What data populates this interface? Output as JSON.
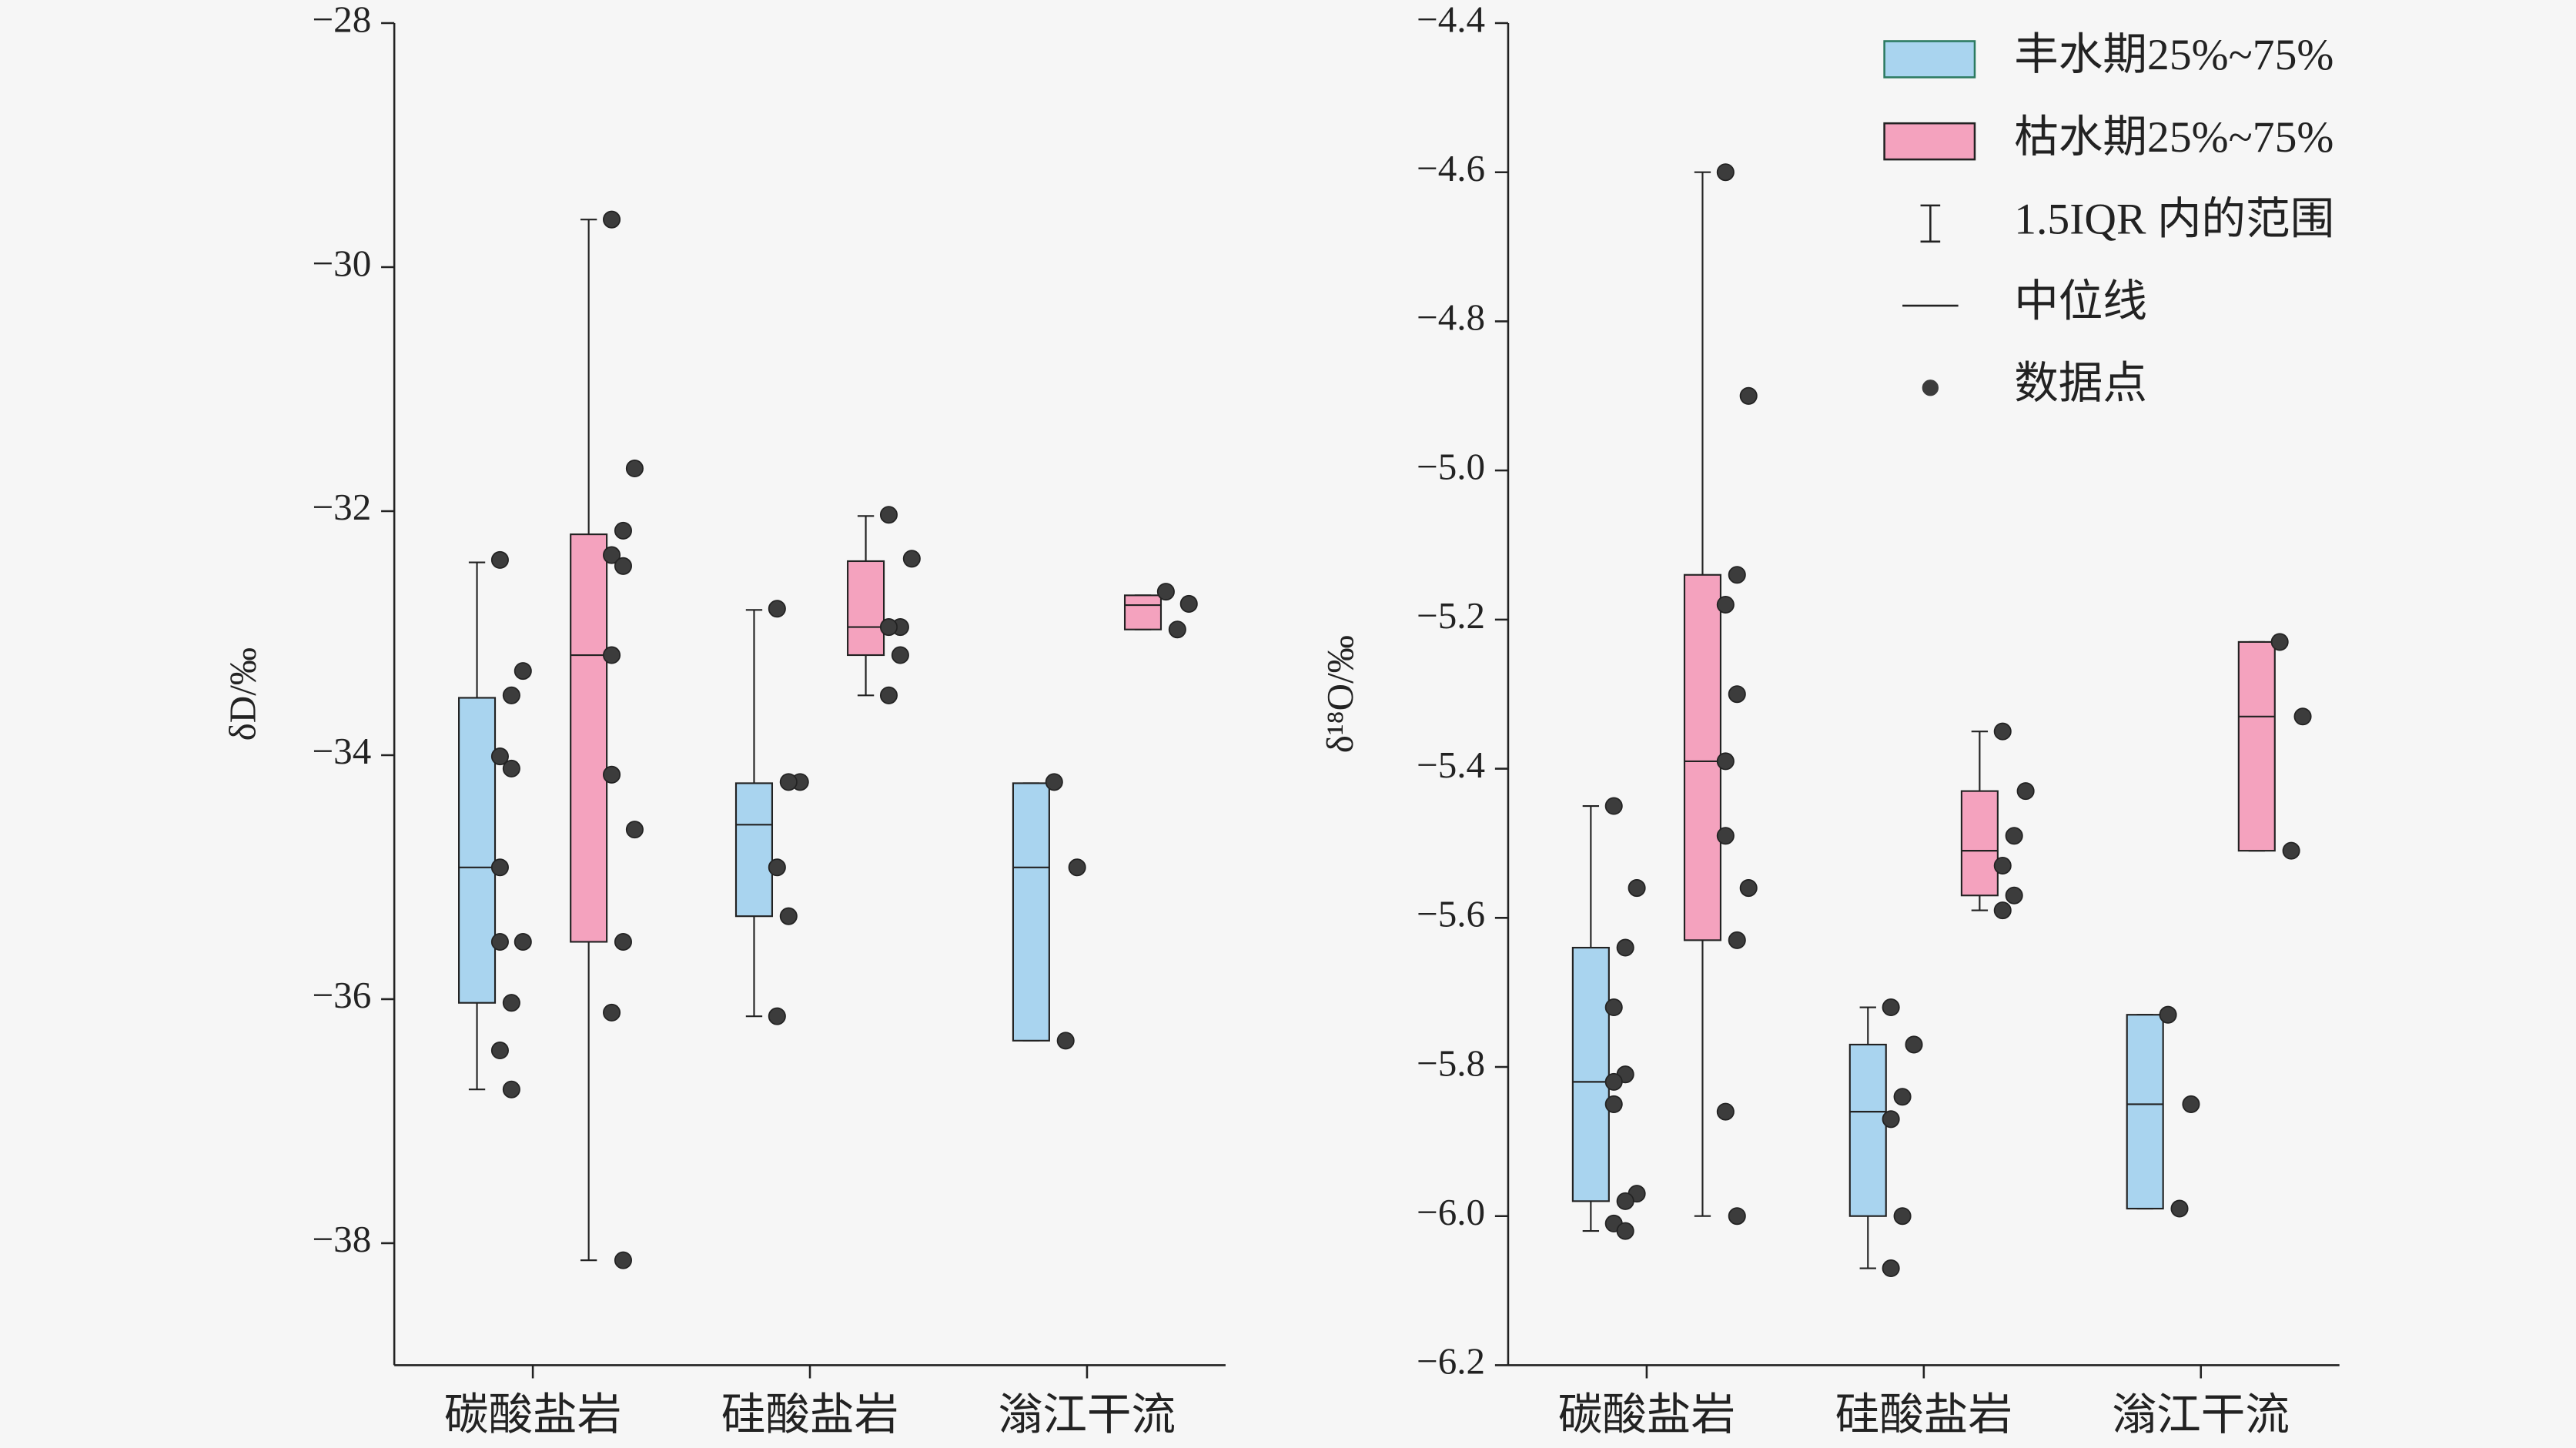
{
  "chart_data": [
    {
      "type": "box",
      "ylabel": "δD/‰",
      "categories": [
        "碳酸盐岩",
        "硅酸盐岩",
        "滃江干流"
      ],
      "ylim": [
        -39,
        -28
      ],
      "yticks": [
        {
          "value": -38,
          "label": "−38"
        },
        {
          "value": -36,
          "label": "−36"
        },
        {
          "value": -34,
          "label": "−34"
        },
        {
          "value": -32,
          "label": "−32"
        },
        {
          "value": -30,
          "label": "−30"
        },
        {
          "value": -28,
          "label": "−28"
        }
      ],
      "series": [
        {
          "color": "#a9d4ef",
          "boxes": [
            {
              "whislo": -36.74,
              "q1": -36.03,
              "med": -34.92,
              "q3": -33.53,
              "whishi": -32.42,
              "points": [
                -32.4,
                -33.31,
                -33.51,
                -34.01,
                -34.11,
                -34.92,
                -35.53,
                -35.53,
                -36.03,
                -36.42,
                -36.74
              ]
            },
            {
              "whislo": -36.14,
              "q1": -35.32,
              "med": -34.57,
              "q3": -34.23,
              "whishi": -32.81,
              "points": [
                -32.8,
                -34.22,
                -34.22,
                -34.92,
                -35.32,
                -36.14
              ]
            },
            {
              "whislo": -36.34,
              "q1": -36.34,
              "med": -34.92,
              "q3": -34.23,
              "whishi": -34.23,
              "points": [
                -34.22,
                -34.92,
                -36.34
              ]
            }
          ]
        },
        {
          "color": "#f4a2be",
          "boxes": [
            {
              "whislo": -38.14,
              "q1": -35.53,
              "med": -33.18,
              "q3": -32.19,
              "whishi": -29.61,
              "points": [
                -29.61,
                -31.65,
                -32.16,
                -32.36,
                -32.45,
                -33.18,
                -34.16,
                -34.61,
                -35.53,
                -36.11,
                -38.14
              ]
            },
            {
              "whislo": -33.51,
              "q1": -33.18,
              "med": -32.95,
              "q3": -32.41,
              "whishi": -32.04,
              "points": [
                -32.03,
                -32.39,
                -32.95,
                -32.95,
                -33.18,
                -33.51
              ]
            },
            {
              "whislo": -32.97,
              "q1": -32.97,
              "med": -32.77,
              "q3": -32.69,
              "whishi": -32.69,
              "points": [
                -32.66,
                -32.76,
                -32.97
              ]
            }
          ]
        }
      ]
    },
    {
      "type": "box",
      "ylabel": "δ¹⁸O/‰",
      "categories": [
        "碳酸盐岩",
        "硅酸盐岩",
        "滃江干流"
      ],
      "ylim": [
        -6.2,
        -4.4
      ],
      "yticks": [
        {
          "value": -6.2,
          "label": "−6.2"
        },
        {
          "value": -6.0,
          "label": "−6.0"
        },
        {
          "value": -5.8,
          "label": "−5.8"
        },
        {
          "value": -5.6,
          "label": "−5.6"
        },
        {
          "value": -5.4,
          "label": "−5.4"
        },
        {
          "value": -5.2,
          "label": "−5.2"
        },
        {
          "value": -5.0,
          "label": "−5.0"
        },
        {
          "value": -4.8,
          "label": "−4.8"
        },
        {
          "value": -4.6,
          "label": "−4.6"
        },
        {
          "value": -4.4,
          "label": "−4.4"
        }
      ],
      "series": [
        {
          "name": "丰水期25%~75%",
          "color": "#a9d4ef",
          "boxes": [
            {
              "whislo": -6.02,
              "q1": -5.98,
              "med": -5.82,
              "q3": -5.64,
              "whishi": -5.45,
              "points": [
                -5.45,
                -5.56,
                -5.64,
                -5.72,
                -5.81,
                -5.82,
                -5.85,
                -5.97,
                -5.98,
                -6.01,
                -6.02
              ]
            },
            {
              "whislo": -6.07,
              "q1": -6.0,
              "med": -5.86,
              "q3": -5.77,
              "whishi": -5.72,
              "points": [
                -5.72,
                -5.77,
                -5.84,
                -5.87,
                -6.0,
                -6.07
              ]
            },
            {
              "whislo": -5.99,
              "q1": -5.99,
              "med": -5.85,
              "q3": -5.73,
              "whishi": -5.73,
              "points": [
                -5.73,
                -5.85,
                -5.99
              ]
            }
          ]
        },
        {
          "name": "枯水期25%~75%",
          "color": "#f4a2be",
          "boxes": [
            {
              "whislo": -6.0,
              "q1": -5.63,
              "med": -5.39,
              "q3": -5.14,
              "whishi": -4.6,
              "points": [
                -4.6,
                -4.9,
                -5.14,
                -5.18,
                -5.3,
                -5.39,
                -5.49,
                -5.56,
                -5.63,
                -5.86,
                -6.0
              ]
            },
            {
              "whislo": -5.59,
              "q1": -5.57,
              "med": -5.51,
              "q3": -5.43,
              "whishi": -5.35,
              "points": [
                -5.35,
                -5.43,
                -5.49,
                -5.53,
                -5.57,
                -5.59
              ]
            },
            {
              "whislo": -5.51,
              "q1": -5.51,
              "med": -5.33,
              "q3": -5.23,
              "whishi": -5.23,
              "points": [
                -5.23,
                -5.33,
                -5.51
              ]
            }
          ]
        }
      ],
      "legend_extra": [
        "1.5IQR 内的范围",
        "中位线",
        "数据点"
      ]
    }
  ]
}
